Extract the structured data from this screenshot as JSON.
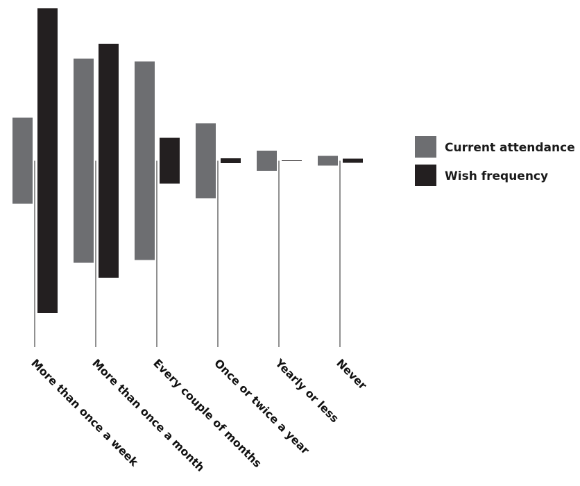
{
  "chart_data": {
    "type": "bar",
    "layout": "symmetric-centered",
    "categories": [
      "More than once a week",
      "More than once a month",
      "Every couple of months",
      "Once or twice a year",
      "Yearly or less",
      "Never"
    ],
    "series": [
      {
        "name": "Current attendance",
        "color": "#6d6e71",
        "values": [
          124,
          294,
          286,
          108,
          29,
          14
        ]
      },
      {
        "name": "Wish frequency",
        "color": "#231f20",
        "values": [
          439,
          337,
          66,
          7,
          1,
          6
        ]
      }
    ],
    "legend_position": "right",
    "grid": false
  }
}
